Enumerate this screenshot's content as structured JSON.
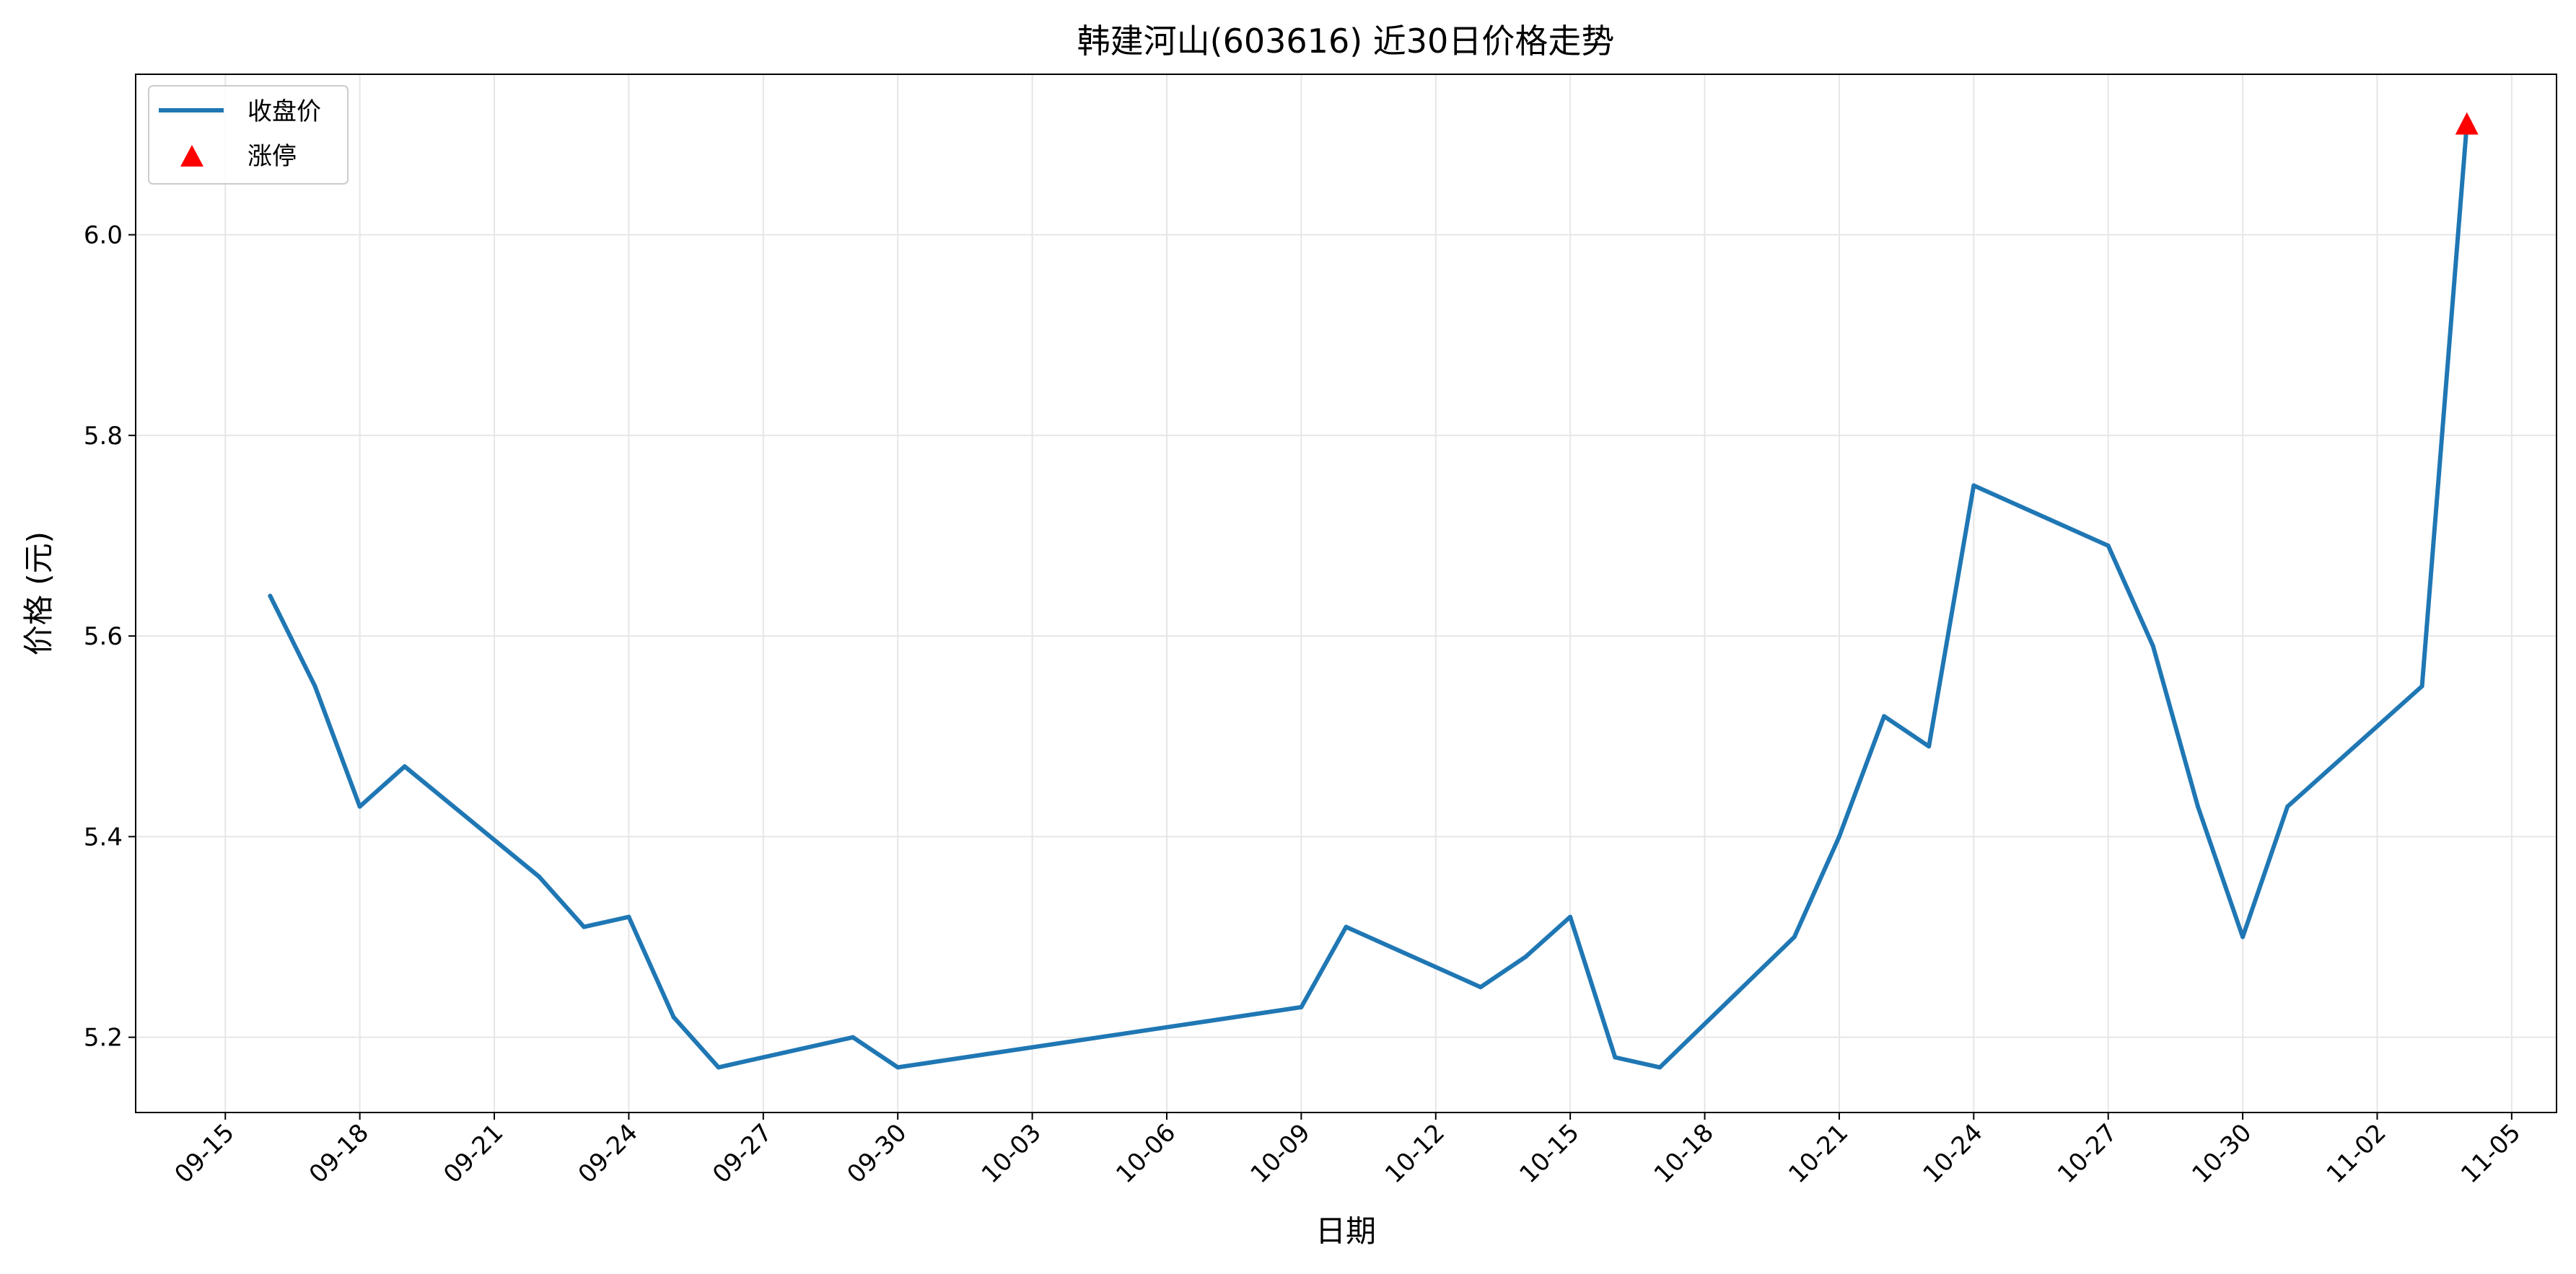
{
  "chart_data": {
    "type": "line",
    "title": "韩建河山(603616) 近30日价格走势",
    "xlabel": "日期",
    "ylabel": "价格 (元)",
    "grid": true,
    "legend_position": "top-left",
    "x_ticks": [
      "09-15",
      "09-18",
      "09-21",
      "09-24",
      "09-27",
      "09-30",
      "10-03",
      "10-06",
      "10-09",
      "10-12",
      "10-15",
      "10-18",
      "10-21",
      "10-24",
      "10-27",
      "10-30",
      "11-02",
      "11-05"
    ],
    "y_ticks": [
      "5.2",
      "5.4",
      "5.6",
      "5.8",
      "6.0"
    ],
    "xlim": [
      "09-13",
      "11-06"
    ],
    "ylim": [
      5.125,
      6.16
    ],
    "colors": {
      "line": "#1f77b4",
      "marker": "#ff0000"
    },
    "series": [
      {
        "name": "收盘价",
        "kind": "line",
        "x": [
          "09-16",
          "09-17",
          "09-18",
          "09-19",
          "09-22",
          "09-23",
          "09-24",
          "09-25",
          "09-26",
          "09-29",
          "09-30",
          "10-09",
          "10-10",
          "10-13",
          "10-14",
          "10-15",
          "10-16",
          "10-17",
          "10-20",
          "10-21",
          "10-22",
          "10-23",
          "10-24",
          "10-27",
          "10-28",
          "10-29",
          "10-30",
          "10-31",
          "11-03",
          "11-04"
        ],
        "values": [
          5.64,
          5.55,
          5.43,
          5.47,
          5.36,
          5.31,
          5.32,
          5.22,
          5.17,
          5.2,
          5.17,
          5.23,
          5.31,
          5.25,
          5.28,
          5.32,
          5.18,
          5.17,
          5.3,
          5.4,
          5.52,
          5.49,
          5.75,
          5.69,
          5.59,
          5.43,
          5.3,
          5.43,
          5.55,
          6.11
        ]
      },
      {
        "name": "涨停",
        "kind": "marker",
        "x": [
          "11-04"
        ],
        "values": [
          6.11
        ]
      }
    ]
  }
}
